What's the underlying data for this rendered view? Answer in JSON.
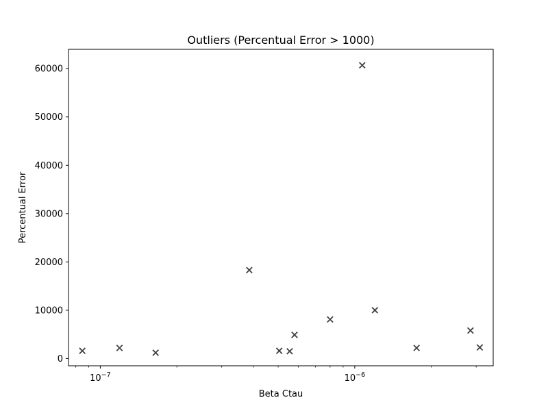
{
  "chart_data": {
    "type": "scatter",
    "title": "Outliers (Percentual Error > 1000)",
    "xlabel": "Beta Ctau",
    "ylabel": "Percentual Error",
    "x_scale": "log",
    "xlim": [
      7.5e-08,
      3.5e-06
    ],
    "ylim": [
      -1500,
      64000
    ],
    "marker": "x",
    "marker_color": "#404040",
    "grid": false,
    "x_ticks": [
      {
        "value": 1e-07,
        "base": "10",
        "exp": "−7"
      },
      {
        "value": 1e-06,
        "base": "10",
        "exp": "−6"
      }
    ],
    "y_ticks": [
      0,
      10000,
      20000,
      30000,
      40000,
      50000,
      60000
    ],
    "series": [
      {
        "points": [
          {
            "x": 8.5e-08,
            "y": 1600
          },
          {
            "x": 1.19e-07,
            "y": 2200
          },
          {
            "x": 1.65e-07,
            "y": 1200
          },
          {
            "x": 3.85e-07,
            "y": 18300
          },
          {
            "x": 5.05e-07,
            "y": 1600
          },
          {
            "x": 5.55e-07,
            "y": 1500
          },
          {
            "x": 5.8e-07,
            "y": 4900
          },
          {
            "x": 8e-07,
            "y": 8100
          },
          {
            "x": 1.07e-06,
            "y": 60700
          },
          {
            "x": 1.2e-06,
            "y": 10000
          },
          {
            "x": 1.75e-06,
            "y": 2200
          },
          {
            "x": 2.85e-06,
            "y": 5800
          },
          {
            "x": 3.1e-06,
            "y": 2300
          }
        ]
      }
    ]
  }
}
